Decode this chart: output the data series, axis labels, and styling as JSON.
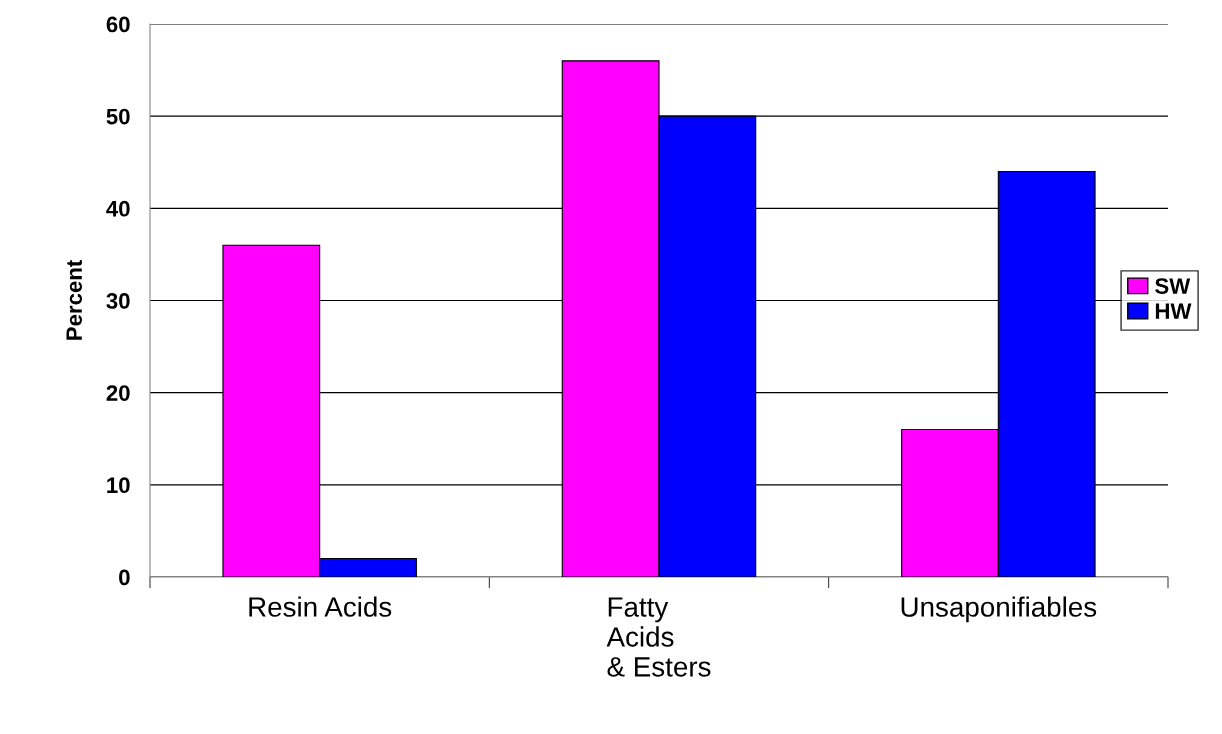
{
  "chart_data": {
    "type": "bar",
    "ylabel": "Percent",
    "categories": [
      "Resin Acids",
      "Fatty\nAcids\n& Esters",
      "Unsaponifiables"
    ],
    "series": [
      {
        "name": "SW",
        "color": "#ff00ff",
        "values": [
          36,
          56,
          16
        ]
      },
      {
        "name": "HW",
        "color": "#0000ff",
        "values": [
          2,
          50,
          44
        ]
      }
    ],
    "ylim": [
      0,
      60
    ],
    "yticks": [
      0,
      10,
      20,
      30,
      40,
      50,
      60
    ],
    "grid": "y",
    "legend": "right"
  }
}
